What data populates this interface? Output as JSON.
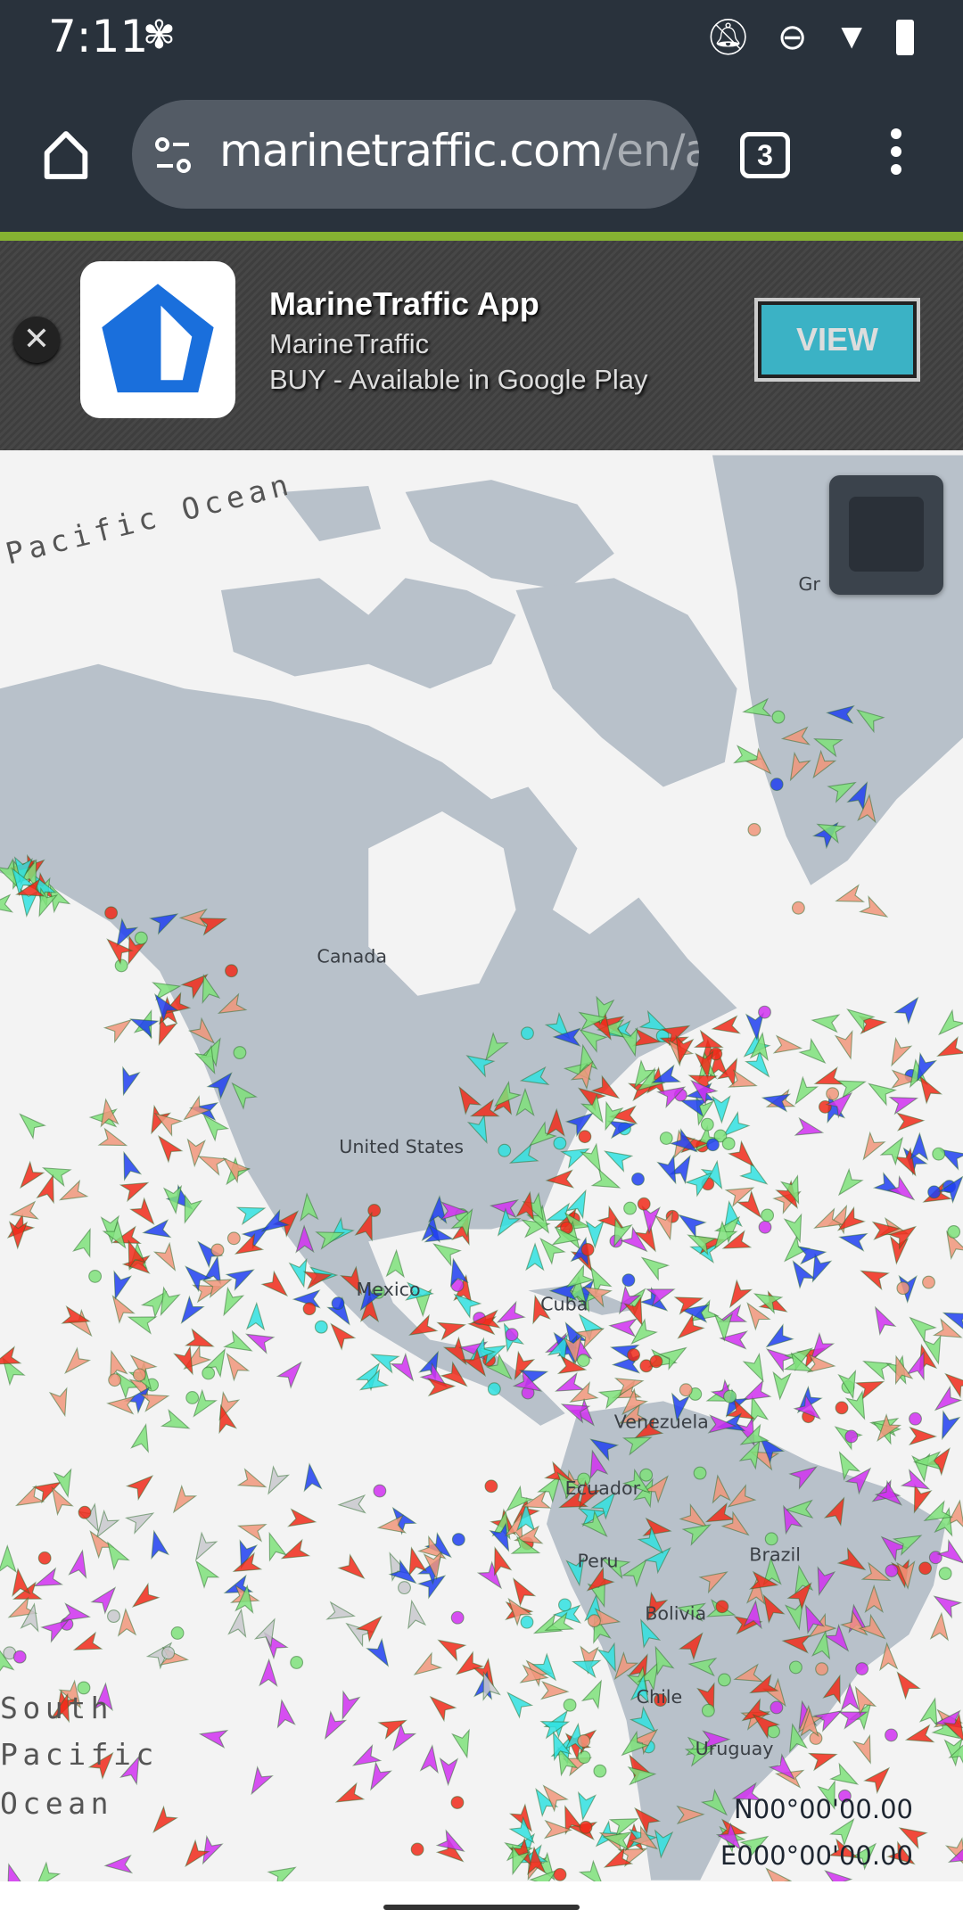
{
  "status_bar": {
    "time": "7:11",
    "icons": [
      "fan-icon",
      "notifications-off-icon",
      "do-not-disturb-icon",
      "wifi-icon",
      "battery-icon"
    ]
  },
  "browser": {
    "url_host": "marinetraffic.com",
    "url_path": "/en/a",
    "tab_count": "3",
    "icons": [
      "home-icon",
      "site-settings-icon",
      "tabs-icon",
      "more-vert-icon"
    ]
  },
  "ad": {
    "title": "MarineTraffic App",
    "publisher": "MarineTraffic",
    "subtitle": "BUY - Available in Google Play",
    "button": "VIEW",
    "colors": {
      "button": "#3bb2c5",
      "logo": "#1a6fdc"
    }
  },
  "map": {
    "labels": {
      "pacific": "Pacific Ocean",
      "greenland": "Gr",
      "canada": "Canada",
      "us": "United States",
      "mexico": "Mexico",
      "cuba": "Cuba",
      "venezuela": "Venezuela",
      "ecuador": "Ecuador",
      "peru": "Peru",
      "brazil": "Brazil",
      "bolivia": "Bolivia",
      "chile": "Chile",
      "uruguay": "Uruguay",
      "south": "South",
      "pacific2": "Pacific",
      "ocean2": "Ocean"
    },
    "coordinates": {
      "lat": "N00°00'00.00",
      "lon": "E000°00'00.00"
    },
    "colors": {
      "land": "#b8c1ca",
      "water": "#f3f3f3",
      "cargo": "#7ee07a",
      "tanker": "#f02a1a",
      "passenger": "#2040f0",
      "tug": "#30e0e0",
      "pleasure": "#d030f0",
      "fishing": "#f0957a",
      "unknown": "#c8c8cc"
    }
  }
}
